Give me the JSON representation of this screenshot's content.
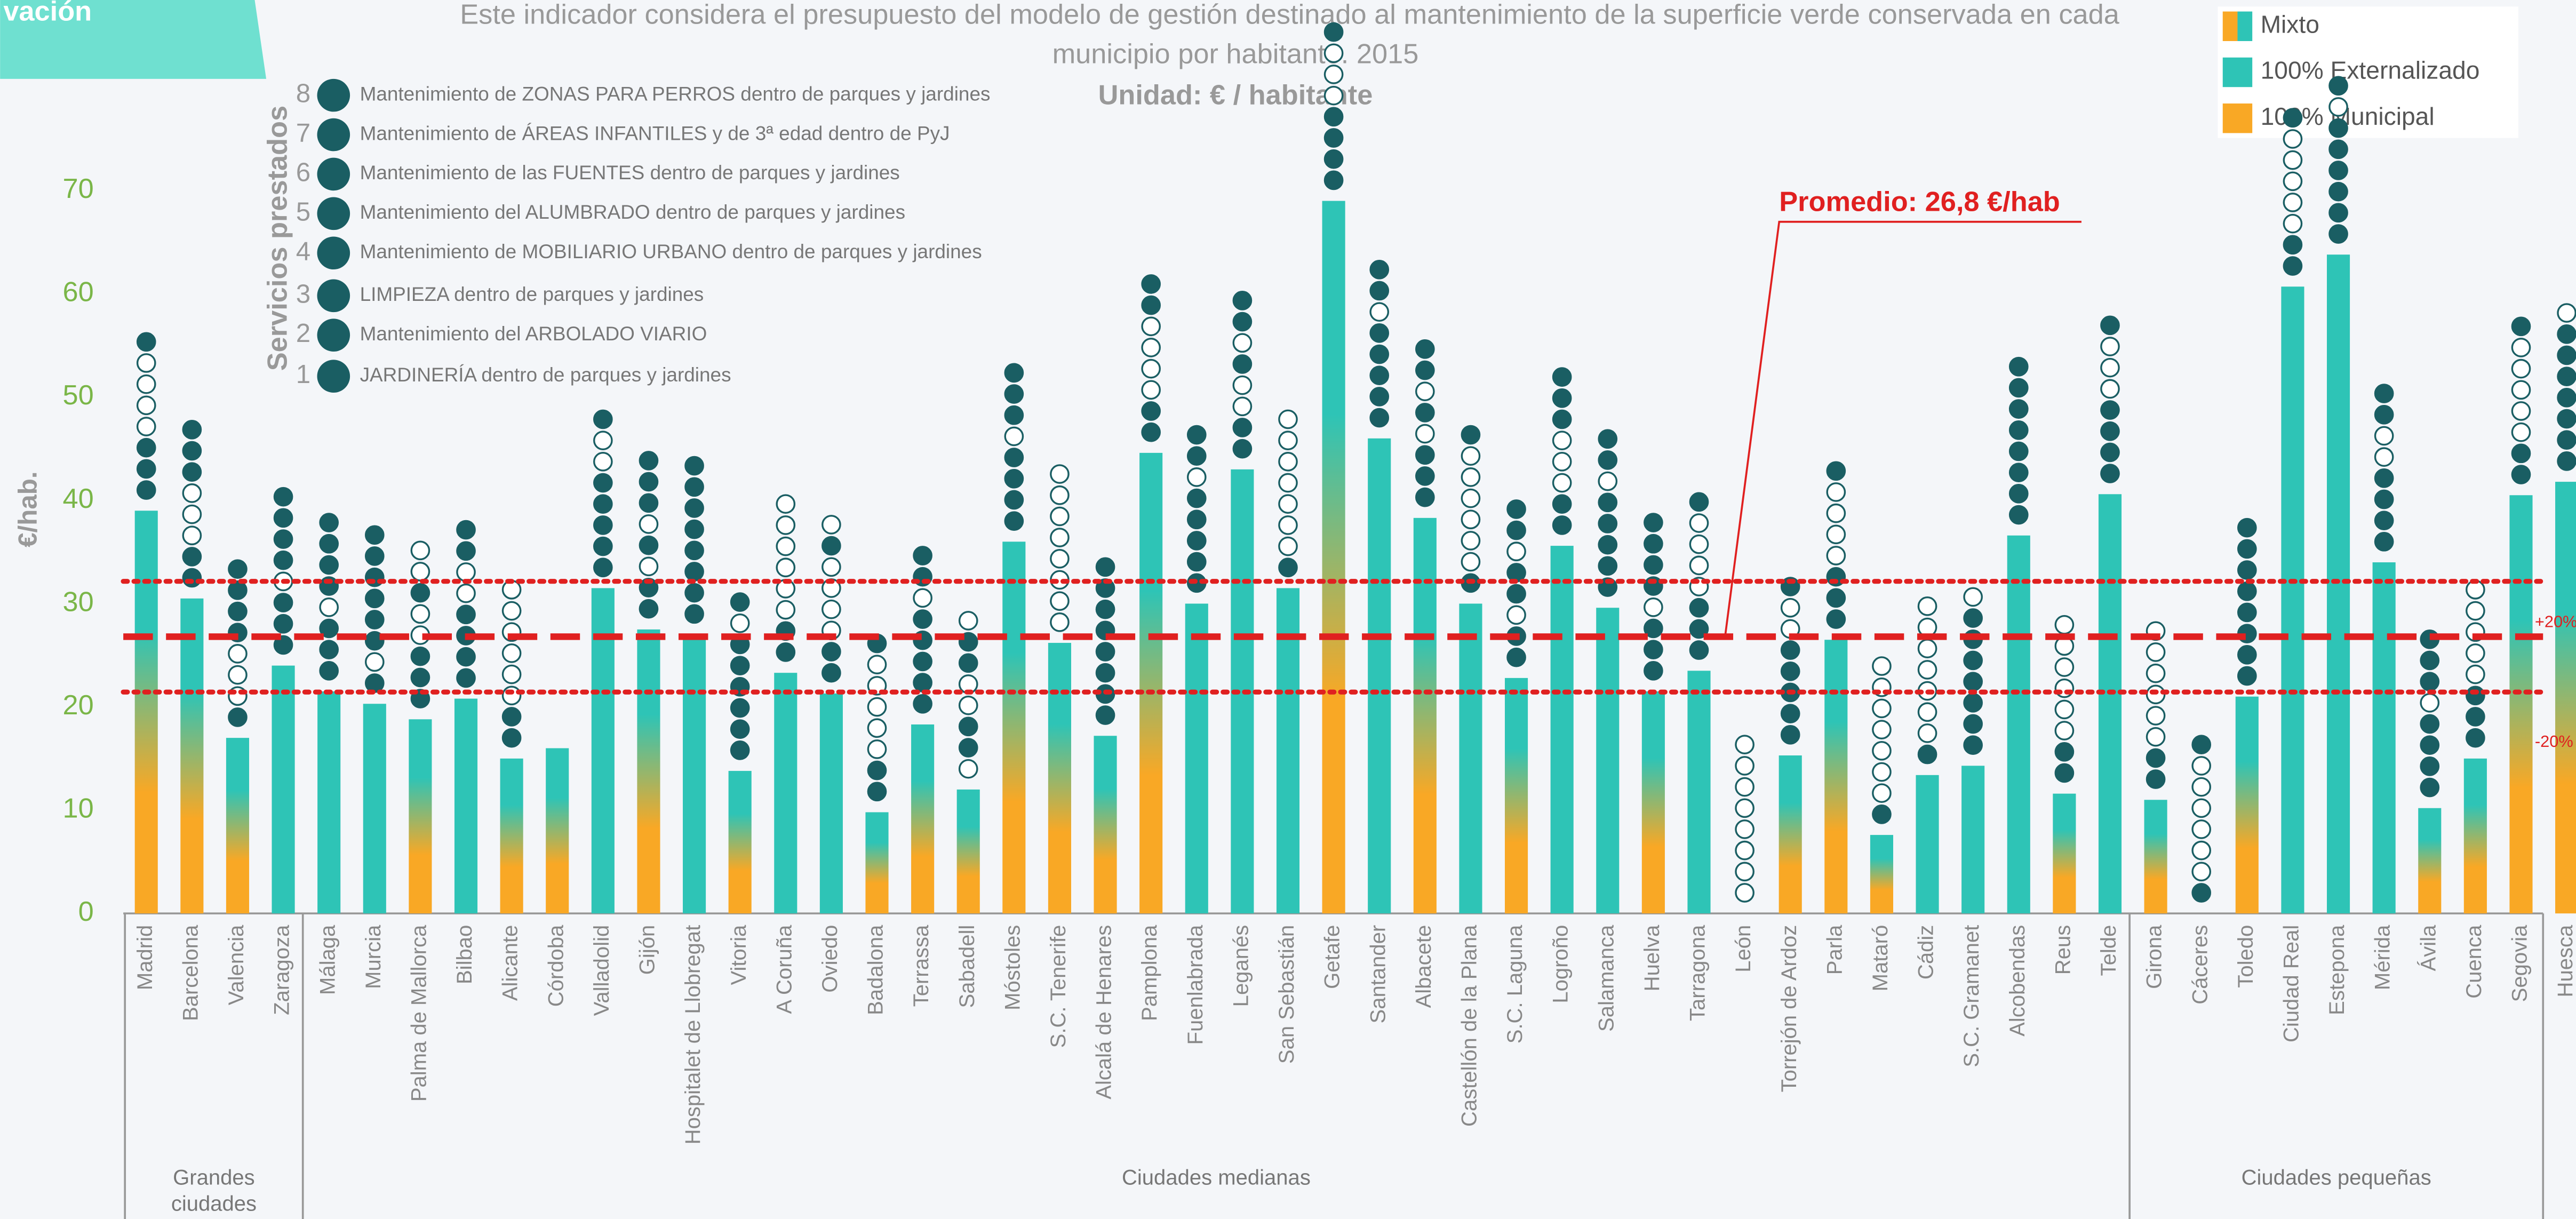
{
  "tab_label": "vación",
  "chart_data": {
    "type": "bar",
    "title": "Este indicador considera el presupuesto del modelo de gestión destinado al mantenimiento de la superficie verde conservada en cada",
    "subtitle": "municipio por habitante. 2015",
    "unit": "Unidad: € / habitante",
    "y_label": "€/hab.",
    "ylim": [
      0,
      70
    ],
    "yticks": [
      0,
      10,
      20,
      30,
      40,
      50,
      60,
      70
    ],
    "legend": [
      {
        "name": "Mixto",
        "colors": [
          "#f9a825",
          "#2ec4b6"
        ]
      },
      {
        "name": "100% Externalizado",
        "colors": [
          "#2ec4b6"
        ]
      },
      {
        "name": "100% Municipal",
        "colors": [
          "#f9a825"
        ]
      }
    ],
    "services_title": "Servicios prestados",
    "services_legend": [
      {
        "number": 8,
        "label": "Mantenimiento de ZONAS PARA PERROS dentro de parques y jardines"
      },
      {
        "number": 7,
        "label": "Mantenimiento de ÁREAS INFANTILES y de 3ª edad dentro de PyJ"
      },
      {
        "number": 6,
        "label": "Mantenimiento de las FUENTES dentro de parques y jardines"
      },
      {
        "number": 5,
        "label": "Mantenimiento del ALUMBRADO dentro de parques y jardines"
      },
      {
        "number": 4,
        "label": "Mantenimiento de MOBILIARIO URBANO dentro de parques y jardines"
      },
      {
        "number": 3,
        "label": "LIMPIEZA dentro de parques y jardines"
      },
      {
        "number": 2,
        "label": "Mantenimiento del ARBOLADO VIARIO"
      },
      {
        "number": 1,
        "label": "JARDINERÍA dentro de parques y jardines"
      }
    ],
    "reference_lines": [
      {
        "value": 26.8,
        "style": "dashed",
        "color": "#e02020"
      },
      {
        "value": 32.16,
        "label": "+20%",
        "style": "dotted",
        "color": "#e02020"
      },
      {
        "value": 21.44,
        "label": "-20%",
        "style": "dotted",
        "color": "#e02020"
      }
    ],
    "annotation": "Promedio: 26,8 €/hab",
    "groups": [
      {
        "name": "Grandes ciudades",
        "categories": [
          "Madrid",
          "Barcelona",
          "Valencia",
          "Zaragoza"
        ],
        "values": [
          39,
          30.5,
          17,
          24
        ],
        "management": [
          0,
          0,
          0,
          1
        ],
        "services": [
          [
            1,
            1,
            1,
            0,
            0,
            0,
            0,
            1
          ],
          [
            1,
            1,
            0,
            0,
            0,
            1,
            1,
            1
          ],
          [
            1,
            0,
            0,
            0,
            1,
            1,
            1,
            1
          ],
          [
            1,
            1,
            1,
            0,
            1,
            1,
            1,
            1
          ]
        ]
      },
      {
        "name": "Ciudades medianas",
        "categories": [
          "Málaga",
          "Murcia",
          "Palma de Mallorca",
          "Bilbao",
          "Alicante",
          "Córdoba",
          "Valladolid",
          "Gijón",
          "Hospitalet de Llobregat",
          "Vitoria",
          "A Coruña",
          "Oviedo",
          "Badalona",
          "Terrassa",
          "Sabadell",
          "Móstoles",
          "S.C. Tenerife",
          "Alcalá de Henares",
          "Pamplona",
          "Fuenlabrada",
          "Leganés",
          "San Sebastián",
          "Getafe",
          "Santander",
          "Albacete",
          "Castellón de la Plana",
          "S.C. Laguna",
          "Logroño",
          "Salamanca",
          "Huelva",
          "Tarragona",
          "León",
          "Torrejón de Ardoz",
          "Parla",
          "Mataró",
          "Cádiz",
          "S.C. Gramanet",
          "Alcobendas",
          "Reus",
          "Telde"
        ],
        "values": [
          21.5,
          20.3,
          18.8,
          20.8,
          15,
          16,
          31.5,
          27.5,
          27,
          13.8,
          23.3,
          21.3,
          9.8,
          18.3,
          12,
          36,
          26.2,
          17.2,
          44.6,
          30,
          43,
          31.5,
          69,
          46,
          38.3,
          30,
          22.8,
          35.6,
          29.6,
          21.5,
          23.5,
          0,
          15.3,
          26.5,
          7.6,
          13.4,
          14.3,
          36.6,
          11.6,
          40.6
        ],
        "management": [
          1,
          1,
          0,
          1,
          0,
          0,
          1,
          0,
          1,
          0,
          1,
          1,
          0,
          0,
          0,
          0,
          0,
          0,
          0,
          1,
          1,
          1,
          0,
          1,
          0,
          1,
          0,
          1,
          1,
          0,
          1,
          1,
          0,
          0,
          0,
          1,
          1,
          1,
          0,
          1
        ],
        "services": [
          [
            1,
            1,
            1,
            0,
            1,
            1,
            1,
            1
          ],
          [
            1,
            0,
            1,
            1,
            1,
            1,
            1,
            1
          ],
          [
            1,
            1,
            1,
            0,
            0,
            1,
            0,
            0
          ],
          [
            1,
            1,
            1,
            1,
            0,
            0,
            1,
            1
          ],
          [
            1,
            1,
            0,
            0,
            0,
            0,
            0,
            0
          ],
          [],
          [
            1,
            1,
            1,
            1,
            1,
            0,
            0,
            1
          ],
          [
            1,
            1,
            0,
            1,
            0,
            1,
            1,
            1
          ],
          [
            1,
            1,
            1,
            1,
            1,
            1,
            1,
            1
          ],
          [
            1,
            1,
            1,
            1,
            1,
            1,
            0,
            1
          ],
          [
            1,
            1,
            0,
            0,
            0,
            0,
            0,
            0
          ],
          [
            1,
            1,
            0,
            0,
            0,
            0,
            1,
            0
          ],
          [
            1,
            1,
            0,
            0,
            0,
            0,
            0,
            1
          ],
          [
            1,
            1,
            1,
            1,
            1,
            0,
            1,
            1
          ],
          [
            0,
            1,
            1,
            0,
            0,
            1,
            1,
            0
          ],
          [
            1,
            1,
            1,
            1,
            0,
            1,
            1,
            1
          ],
          [
            0,
            0,
            0,
            0,
            0,
            0,
            0,
            0
          ],
          [
            1,
            1,
            1,
            1,
            1,
            1,
            1,
            1
          ],
          [
            1,
            1,
            0,
            0,
            0,
            0,
            1,
            1
          ],
          [
            1,
            1,
            1,
            1,
            1,
            0,
            1,
            1
          ],
          [
            1,
            1,
            0,
            0,
            1,
            0,
            1,
            1
          ],
          [
            1,
            0,
            0,
            0,
            0,
            0,
            0,
            0
          ],
          [
            1,
            1,
            1,
            1,
            0,
            0,
            0,
            1
          ],
          [
            1,
            1,
            1,
            1,
            1,
            0,
            1,
            1
          ],
          [
            1,
            1,
            1,
            0,
            1,
            0,
            1,
            1
          ],
          [
            1,
            0,
            0,
            0,
            0,
            0,
            0,
            1
          ],
          [
            1,
            1,
            0,
            1,
            1,
            0,
            1,
            1
          ],
          [
            1,
            1,
            0,
            0,
            0,
            1,
            1,
            1
          ],
          [
            1,
            1,
            1,
            1,
            1,
            0,
            1,
            1
          ],
          [
            1,
            1,
            1,
            0,
            1,
            1,
            1,
            1
          ],
          [
            1,
            1,
            1,
            0,
            0,
            0,
            0,
            1
          ],
          [
            0,
            0,
            0,
            0,
            0,
            0,
            0,
            0
          ],
          [
            1,
            1,
            1,
            1,
            1,
            0,
            0,
            1
          ],
          [
            1,
            1,
            1,
            0,
            0,
            0,
            0,
            1
          ],
          [
            1,
            0,
            0,
            0,
            0,
            0,
            0,
            0
          ],
          [
            1,
            0,
            0,
            0,
            0,
            0,
            0,
            0
          ],
          [
            1,
            1,
            1,
            1,
            1,
            1,
            1,
            0
          ],
          [
            1,
            1,
            1,
            1,
            1,
            1,
            1,
            1
          ],
          [
            1,
            1,
            0,
            0,
            0,
            0,
            0,
            0
          ],
          [
            1,
            1,
            1,
            1,
            0,
            0,
            0,
            1
          ]
        ]
      },
      {
        "name": "Ciudades pequeñas",
        "categories": [
          "Girona",
          "Cáceres",
          "Toledo",
          "Ciudad Real",
          "Estepona",
          "Mérida",
          "Ávila",
          "Cuenca",
          "Segovia",
          "Huesca"
        ],
        "values": [
          11,
          0,
          21,
          60.7,
          63.8,
          34,
          10.2,
          15,
          40.5,
          41.8
        ],
        "management": [
          0,
          1,
          0,
          1,
          1,
          1,
          0,
          0,
          0,
          0
        ],
        "services": [
          [
            1,
            1,
            0,
            0,
            0,
            0,
            0,
            0
          ],
          [
            1,
            0,
            0,
            0,
            0,
            0,
            0,
            1
          ],
          [
            1,
            1,
            1,
            1,
            1,
            1,
            1,
            1
          ],
          [
            1,
            1,
            0,
            0,
            0,
            0,
            0,
            1
          ],
          [
            1,
            1,
            1,
            1,
            1,
            1,
            0,
            1
          ],
          [
            1,
            1,
            1,
            1,
            0,
            0,
            1,
            1
          ],
          [
            1,
            1,
            1,
            1,
            0,
            1,
            1,
            1
          ],
          [
            1,
            1,
            1,
            0,
            0,
            0,
            0,
            0
          ],
          [
            1,
            1,
            0,
            0,
            0,
            0,
            0,
            1
          ],
          [
            1,
            1,
            1,
            1,
            1,
            1,
            1,
            0
          ]
        ]
      }
    ]
  }
}
